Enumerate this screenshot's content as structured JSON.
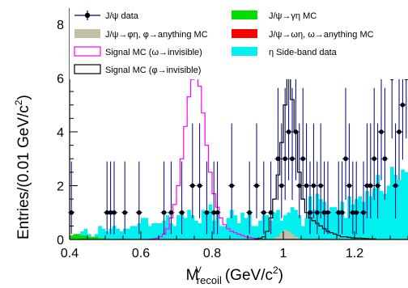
{
  "chart_data": {
    "type": "histogram",
    "xlabel": "M",
    "xlabel_sup": "V",
    "xlabel_sub": "recoil",
    "xlabel_unit": "(GeV/c",
    "xlabel_unit_sup": "2",
    "xlabel_unit_close": ")",
    "ylabel": "Entries/(0.01 GeV/c",
    "ylabel_sup": "2",
    "ylabel_close": ")",
    "xlim": [
      0.4,
      1.35
    ],
    "ylim": [
      0,
      8.6
    ],
    "xticks": [
      {
        "value": 0.4,
        "label": "0.4"
      },
      {
        "value": 0.6,
        "label": "0.6"
      },
      {
        "value": 0.8,
        "label": "0.8"
      },
      {
        "value": 1.0,
        "label": "1"
      },
      {
        "value": 1.2,
        "label": "1.2"
      }
    ],
    "yticks": [
      {
        "value": 0,
        "label": "0"
      },
      {
        "value": 2,
        "label": "2"
      },
      {
        "value": 4,
        "label": "4"
      },
      {
        "value": 6,
        "label": "6"
      },
      {
        "value": 8,
        "label": "8"
      }
    ],
    "legend": [
      {
        "label": "J/ψ data",
        "style": "marker",
        "color": "#000080"
      },
      {
        "label": "J/ψ→γη MC",
        "style": "fill",
        "color": "#00dd00"
      },
      {
        "label": "J/ψ→φη, φ→anything MC",
        "style": "fill",
        "color": "#c4c0a8"
      },
      {
        "label": "J/ψ→ωη, ω→anything MC",
        "style": "fill",
        "color": "#ff0000"
      },
      {
        "label": "Signal MC (ω→invisible)",
        "style": "line",
        "color": "#ff00ff"
      },
      {
        "label": "η Side-band data",
        "style": "fill",
        "color": "#00f0f0"
      },
      {
        "label": "Signal MC (φ→invisible)",
        "style": "line",
        "color": "#000000"
      }
    ],
    "colors": {
      "data": "#000080",
      "sideband": "#00f0f0",
      "phi_eta": "#c4c0a8",
      "gamma_eta": "#00dd00",
      "omega_eta": "#ff0000",
      "signal_omega": "#ff00ff",
      "signal_phi": "#000000"
    },
    "bin_width": 0.01,
    "sideband": {
      "x_start": 0.4,
      "values": [
        0.1,
        0.1,
        0.2,
        0.3,
        0.4,
        0.2,
        0.0,
        0.2,
        0.5,
        0.4,
        0.3,
        0.4,
        0.5,
        0.4,
        0.3,
        0.4,
        0.4,
        0.5,
        0.5,
        0.6,
        0.8,
        0.8,
        0.5,
        0.6,
        0.6,
        0.6,
        0.7,
        0.9,
        0.6,
        0.5,
        0.9,
        1.0,
        0.8,
        1.1,
        0.9,
        0.7,
        0.6,
        1.1,
        1.0,
        1.3,
        0.7,
        0.9,
        0.5,
        0.5,
        0.8,
        1.1,
        0.9,
        0.6,
        1.0,
        0.8,
        1.0,
        0.5,
        0.5,
        0.7,
        0.9,
        0.9,
        0.7,
        1.0,
        1.1,
        0.7,
        0.9,
        1.0,
        1.2,
        1.1,
        0.9,
        0.5,
        0.8,
        1.6,
        1.1,
        1.7,
        1.5,
        1.4,
        0.9,
        1.2,
        1.2,
        1.1,
        1.4,
        0.8,
        1.6,
        1.3,
        1.5,
        1.6,
        1.4,
        1.8,
        1.6,
        1.9,
        2.4,
        1.8,
        1.7,
        2.0,
        2.7,
        2.4,
        2.2,
        2.6,
        2.5
      ]
    },
    "phi_eta": {
      "x_start": 0.97,
      "values": [
        0.05,
        0.1,
        0.25,
        0.35,
        0.3,
        0.2,
        0.1,
        0.05
      ]
    },
    "gamma_eta": {
      "x_start": 0.4,
      "values": [
        0.15,
        0.2,
        0.2,
        0.15,
        0.15,
        0.1,
        0.1,
        0.1,
        0.05,
        0.05
      ]
    },
    "signal_omega": {
      "x_start": 0.62,
      "values": [
        0.0,
        0.02,
        0.05,
        0.1,
        0.2,
        0.4,
        0.8,
        1.3,
        2.0,
        3.0,
        4.2,
        5.3,
        5.95,
        6.0,
        5.7,
        4.7,
        3.5,
        2.5,
        1.7,
        1.2,
        0.8,
        0.55,
        0.4,
        0.3,
        0.25,
        0.2,
        0.15,
        0.1,
        0.08,
        0.05,
        0.03
      ]
    },
    "signal_phi": {
      "x_start": 0.92,
      "values": [
        0.02,
        0.05,
        0.1,
        0.3,
        0.8,
        1.5,
        2.4,
        3.6,
        5.0,
        6.0,
        5.2,
        4.0,
        2.5,
        1.5,
        1.0,
        0.8,
        0.7,
        0.6,
        0.5,
        0.4,
        0.3,
        0.25,
        0.2,
        0.15,
        0.1,
        0.1,
        0.08,
        0.06,
        0.05,
        0.05,
        0.04,
        0.03,
        0.02,
        0.02
      ]
    },
    "data_points": [
      {
        "x": 0.405,
        "y": 1
      },
      {
        "x": 0.505,
        "y": 1
      },
      {
        "x": 0.515,
        "y": 1
      },
      {
        "x": 0.525,
        "y": 1
      },
      {
        "x": 0.555,
        "y": 1
      },
      {
        "x": 0.595,
        "y": 1
      },
      {
        "x": 0.665,
        "y": 1
      },
      {
        "x": 0.685,
        "y": 1
      },
      {
        "x": 0.715,
        "y": 1
      },
      {
        "x": 0.745,
        "y": 2
      },
      {
        "x": 0.765,
        "y": 2
      },
      {
        "x": 0.785,
        "y": 1
      },
      {
        "x": 0.805,
        "y": 1
      },
      {
        "x": 0.815,
        "y": 1
      },
      {
        "x": 0.855,
        "y": 2
      },
      {
        "x": 0.905,
        "y": 1
      },
      {
        "x": 0.925,
        "y": 2
      },
      {
        "x": 0.945,
        "y": 1
      },
      {
        "x": 0.965,
        "y": 1
      },
      {
        "x": 0.985,
        "y": 3
      },
      {
        "x": 0.995,
        "y": 2
      },
      {
        "x": 1.005,
        "y": 3
      },
      {
        "x": 1.015,
        "y": 4
      },
      {
        "x": 1.025,
        "y": 3
      },
      {
        "x": 1.035,
        "y": 4
      },
      {
        "x": 1.045,
        "y": 2
      },
      {
        "x": 1.055,
        "y": 3
      },
      {
        "x": 1.065,
        "y": 2
      },
      {
        "x": 1.075,
        "y": 1
      },
      {
        "x": 1.085,
        "y": 2
      },
      {
        "x": 1.095,
        "y": 1
      },
      {
        "x": 1.105,
        "y": 2
      },
      {
        "x": 1.115,
        "y": 1
      },
      {
        "x": 1.125,
        "y": 1
      },
      {
        "x": 1.155,
        "y": 1
      },
      {
        "x": 1.165,
        "y": 1
      },
      {
        "x": 1.175,
        "y": 3
      },
      {
        "x": 1.185,
        "y": 2
      },
      {
        "x": 1.195,
        "y": 1
      },
      {
        "x": 1.205,
        "y": 1
      },
      {
        "x": 1.225,
        "y": 1
      },
      {
        "x": 1.235,
        "y": 2
      },
      {
        "x": 1.245,
        "y": 2
      },
      {
        "x": 1.255,
        "y": 3
      },
      {
        "x": 1.265,
        "y": 2
      },
      {
        "x": 1.275,
        "y": 4
      },
      {
        "x": 1.285,
        "y": 3
      },
      {
        "x": 1.305,
        "y": 6
      },
      {
        "x": 1.315,
        "y": 2
      },
      {
        "x": 1.325,
        "y": 4
      },
      {
        "x": 1.335,
        "y": 5
      },
      {
        "x": 1.345,
        "y": 6
      }
    ]
  }
}
